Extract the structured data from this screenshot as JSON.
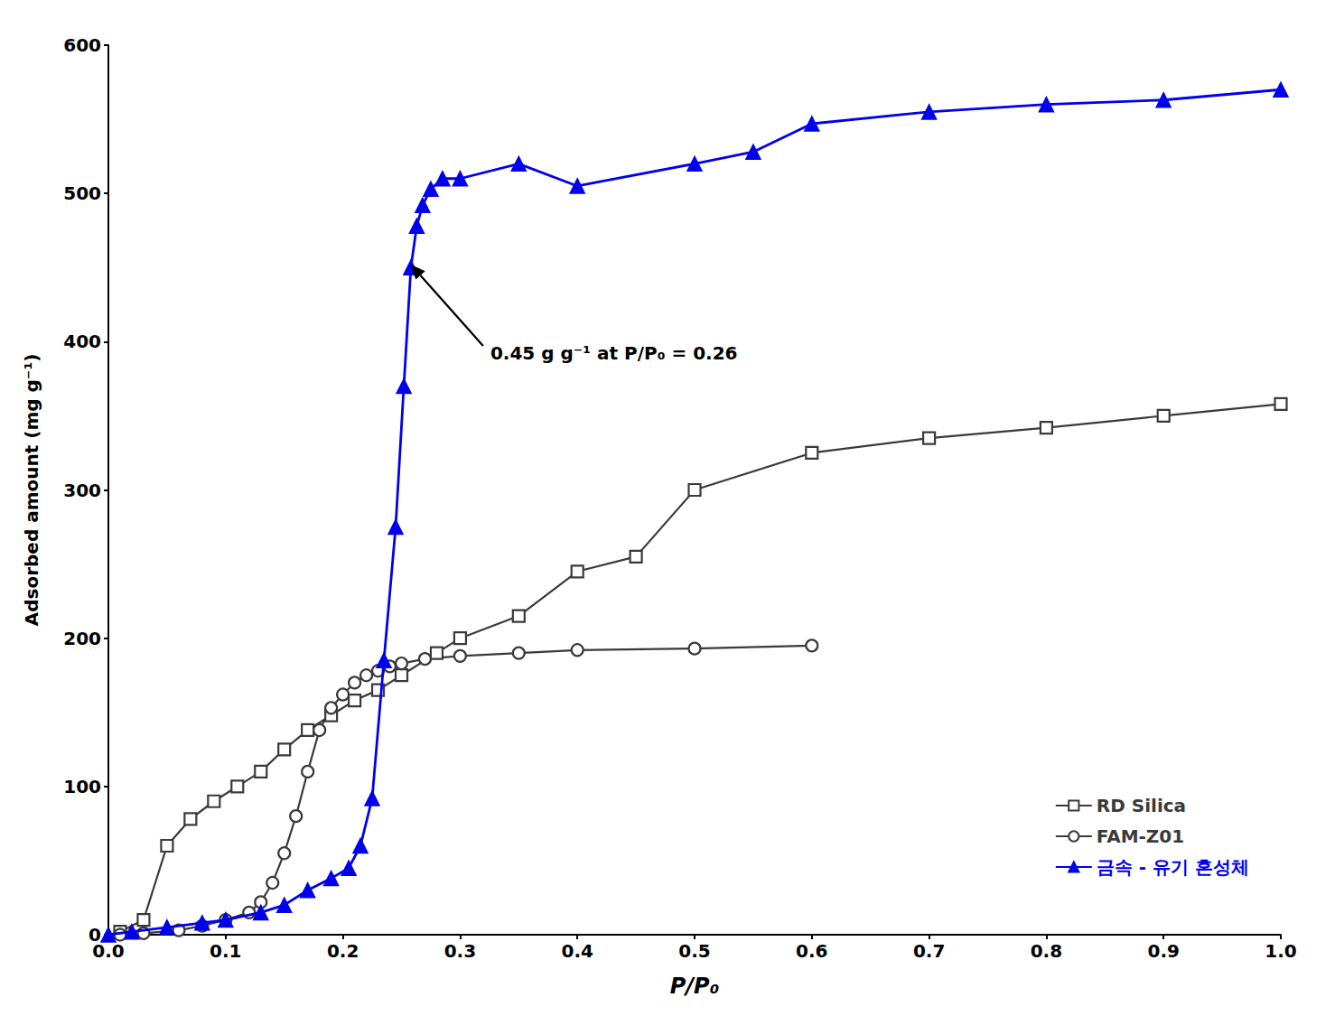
{
  "chart_data": {
    "type": "line",
    "xlabel": "P/P₀",
    "ylabel": "Adsorbed amount (mg g⁻¹)",
    "xlim": [
      0.0,
      1.0
    ],
    "ylim": [
      0,
      600
    ],
    "xticks": [
      {
        "value": 0.0,
        "label": "0.0"
      },
      0.1,
      0.2,
      0.3,
      0.4,
      0.5,
      0.6,
      0.7,
      0.8,
      0.9,
      {
        "value": 1.0,
        "label": "1.0"
      }
    ],
    "yticks": [
      0,
      100,
      200,
      300,
      400,
      500,
      600
    ],
    "grid": false,
    "legend": "lower right",
    "series": [
      {
        "name": "RD Silica",
        "color": "#3a3a3a",
        "marker": "open-square",
        "x": [
          0.01,
          0.03,
          0.05,
          0.07,
          0.09,
          0.11,
          0.13,
          0.15,
          0.17,
          0.19,
          0.21,
          0.23,
          0.25,
          0.28,
          0.3,
          0.35,
          0.4,
          0.45,
          0.5,
          0.6,
          0.7,
          0.8,
          0.9,
          1.0
        ],
        "values": [
          2,
          10,
          60,
          78,
          90,
          100,
          110,
          125,
          138,
          148,
          158,
          165,
          175,
          190,
          200,
          215,
          245,
          255,
          300,
          325,
          335,
          342,
          350,
          358
        ]
      },
      {
        "name": "FAM-Z01",
        "color": "#3a3a3a",
        "marker": "open-circle",
        "x": [
          0.01,
          0.03,
          0.06,
          0.08,
          0.1,
          0.12,
          0.13,
          0.14,
          0.15,
          0.16,
          0.17,
          0.18,
          0.19,
          0.2,
          0.21,
          0.22,
          0.23,
          0.24,
          0.25,
          0.27,
          0.3,
          0.35,
          0.4,
          0.5,
          0.6
        ],
        "values": [
          0,
          1,
          3,
          6,
          10,
          15,
          22,
          35,
          55,
          80,
          110,
          138,
          153,
          162,
          170,
          175,
          178,
          181,
          183,
          186,
          188,
          190,
          192,
          193,
          195
        ]
      },
      {
        "name": "금속 - 유기 혼성체",
        "color": "#0000EE",
        "marker": "triangle",
        "x": [
          0.0,
          0.02,
          0.05,
          0.08,
          0.1,
          0.13,
          0.15,
          0.17,
          0.19,
          0.205,
          0.215,
          0.225,
          0.235,
          0.245,
          0.252,
          0.258,
          0.263,
          0.268,
          0.275,
          0.285,
          0.3,
          0.35,
          0.4,
          0.5,
          0.55,
          0.6,
          0.7,
          0.8,
          0.9,
          1.0
        ],
        "values": [
          0,
          2,
          5,
          8,
          10,
          15,
          20,
          30,
          38,
          45,
          60,
          92,
          185,
          275,
          370,
          450,
          478,
          492,
          503,
          510,
          510,
          520,
          505,
          520,
          528,
          547,
          555,
          560,
          563,
          570
        ]
      }
    ],
    "annotations": [
      {
        "text": "0.45 g g⁻¹ at P/P₀ = 0.26",
        "x": 0.258,
        "y": 452
      }
    ]
  }
}
